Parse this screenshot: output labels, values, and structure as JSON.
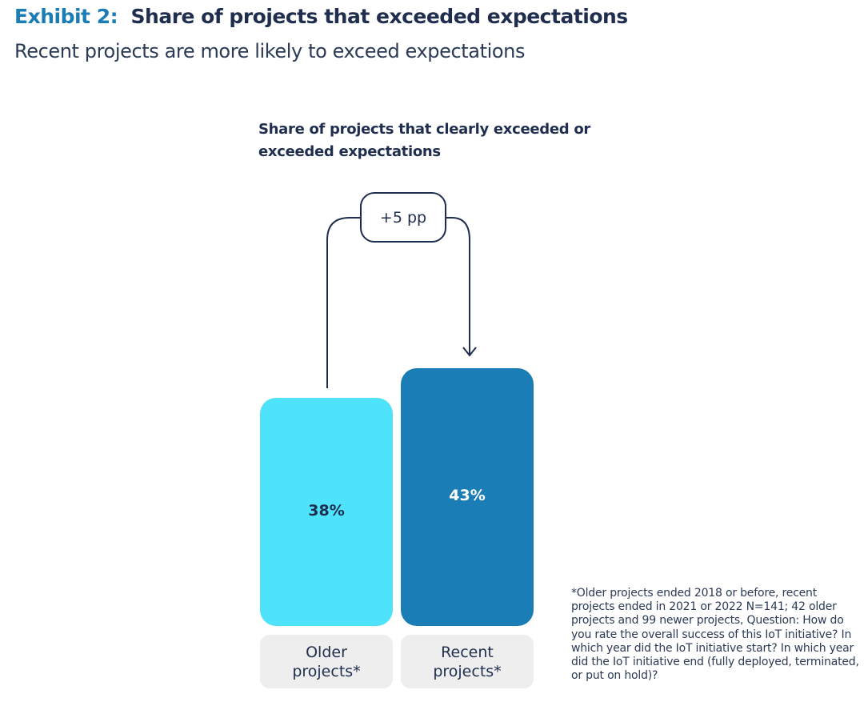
{
  "header": {
    "exhibit": "Exhibit 2:",
    "title": "Share of projects that exceeded expectations",
    "subtitle": "Recent projects are more likely to exceed expectations"
  },
  "chart_data": {
    "type": "bar",
    "title": "Share of projects that clearly exceeded or exceeded expectations",
    "categories": [
      "Older projects*",
      "Recent projects*"
    ],
    "values": [
      38,
      43
    ],
    "value_labels": [
      "38%",
      "43%"
    ],
    "colors": [
      "#4fe3fb",
      "#1a7db6"
    ],
    "annotation": "+5 pp",
    "ylim": [
      0,
      43
    ]
  },
  "footnote": "*Older projects ended 2018 or before, recent projects ended in 2021 or 2022 N=141; 42 older projects and 99 newer projects, Question: How do you rate the overall success of this IoT initiative? In which year did the IoT initiative start? In which year did the IoT initiative end (fully deployed, terminated, or put on hold)?"
}
